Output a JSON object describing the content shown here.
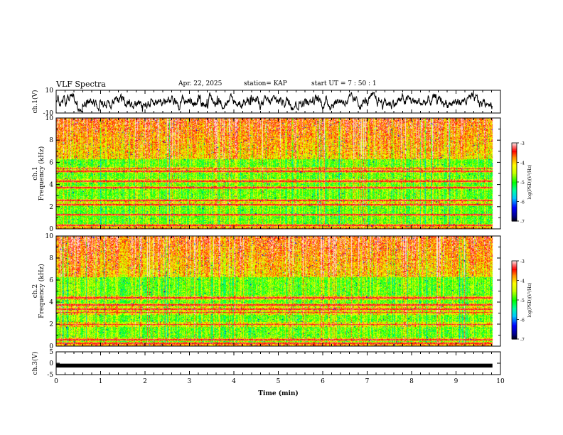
{
  "header": {
    "title": "VLF Spectra",
    "date": "Apr. 22, 2025",
    "station": "station= KAP",
    "start": "start  UT  =   7 : 50 : 1"
  },
  "chart_data": [
    {
      "type": "line",
      "panel": "ch1-waveform",
      "ylabel": "ch.1(V)",
      "ylim": [
        -10,
        10
      ],
      "yticks": [
        "10",
        "-10"
      ],
      "xlim": [
        0,
        10
      ]
    },
    {
      "type": "heatmap",
      "panel": "ch1-spectrogram",
      "ylabel_line1": "ch.1",
      "ylabel_line2": "Frequency  (kHz)",
      "ylim": [
        0,
        10
      ],
      "yticks": [
        "0",
        "2",
        "4",
        "6",
        "8",
        "10"
      ],
      "xlim": [
        0,
        10
      ],
      "data_end_min": 9.82,
      "bright_bands_khz": [
        0.35,
        1.3,
        2.2,
        2.6,
        3.75,
        4.35,
        5.2,
        5.45
      ],
      "quiet_bands_khz": [
        [
          0.5,
          1.2
        ],
        [
          1.4,
          2.1
        ],
        [
          2.7,
          3.6
        ],
        [
          3.9,
          4.2
        ],
        [
          4.5,
          5.1
        ],
        [
          5.6,
          6.3
        ]
      ],
      "colorbar": {
        "label": "log(PSD)(V²/Hz)",
        "ticks": [
          "-3",
          "-4",
          "-5",
          "-6",
          "-7"
        ],
        "range": [
          -7,
          -3
        ]
      }
    },
    {
      "type": "heatmap",
      "panel": "ch2-spectrogram",
      "ylabel_line1": "ch.2",
      "ylabel_line2": "Frequency  (kHz)",
      "ylim": [
        0,
        10
      ],
      "yticks": [
        "0",
        "2",
        "4",
        "6",
        "8",
        "10"
      ],
      "xlim": [
        0,
        10
      ],
      "data_end_min": 9.82,
      "bright_bands_khz": [
        0.3,
        0.6,
        2.0,
        3.1,
        3.4,
        3.75,
        4.4
      ],
      "quiet_bands_khz": [
        [
          0.4,
          0.5
        ],
        [
          0.8,
          1.8
        ],
        [
          2.2,
          2.9
        ],
        [
          3.9,
          4.2
        ],
        [
          4.6,
          6.3
        ]
      ],
      "colorbar": {
        "label": "log(PSD)(V²/Hz)",
        "ticks": [
          "-3",
          "-4",
          "-5",
          "-6",
          "-7"
        ],
        "range": [
          -7,
          -3
        ]
      }
    },
    {
      "type": "line",
      "panel": "ch3-waveform",
      "ylabel": "ch.3(V)",
      "ylim": [
        -5,
        5
      ],
      "yticks": [
        "5",
        "0",
        "-5"
      ],
      "xlim": [
        0,
        10
      ],
      "xlabel": "Time  (min)",
      "xticks": [
        "0",
        "1",
        "2",
        "3",
        "4",
        "5",
        "6",
        "7",
        "8",
        "9",
        "10"
      ]
    }
  ]
}
